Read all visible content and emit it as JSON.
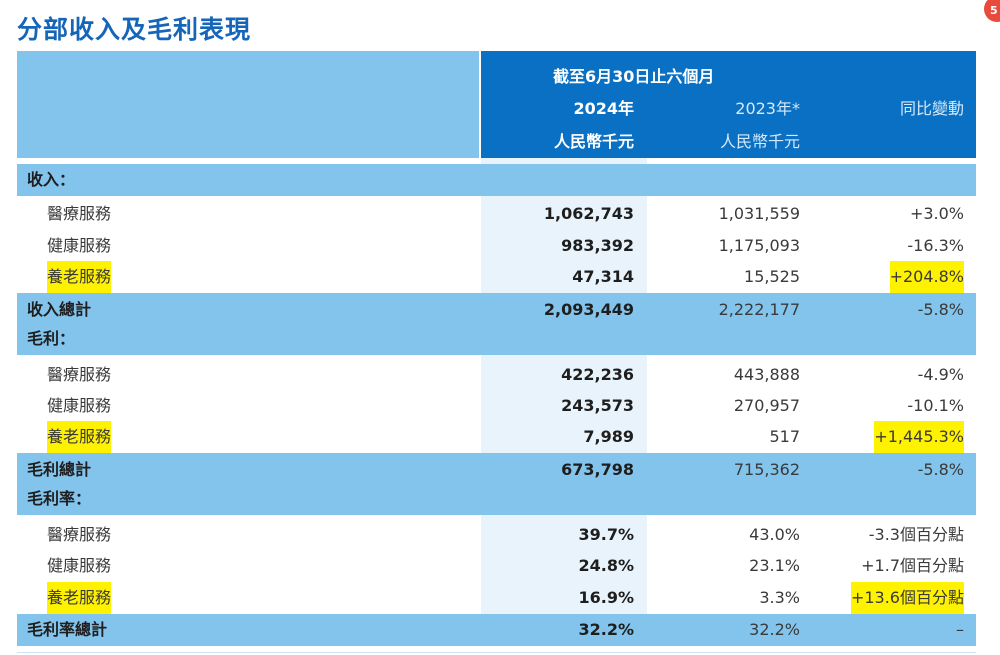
{
  "title": "分部收入及毛利表現",
  "badge": "5",
  "header": {
    "period": "截至6月30日止六個月",
    "col_2024": "2024年",
    "col_2023": "2023年*",
    "col_change": "同比變動",
    "unit_2024": "人民幣千元",
    "unit_2023": "人民幣千元"
  },
  "sections": {
    "revenue": "收入：",
    "gross_profit": "毛利：",
    "margin": "毛利率："
  },
  "revenue_rows": [
    {
      "label": "醫療服務",
      "v2024": "1,062,743",
      "v2023": "1,031,559",
      "change": "+3.0%"
    },
    {
      "label": "健康服務",
      "v2024": "983,392",
      "v2023": "1,175,093",
      "change": "-16.3%"
    },
    {
      "label": "養老服務",
      "v2024": "47,314",
      "v2023": "15,525",
      "change": "+204.8%"
    }
  ],
  "revenue_total": {
    "label": "收入總計",
    "v2024": "2,093,449",
    "v2023": "2,222,177",
    "change": "-5.8%"
  },
  "gp_rows": [
    {
      "label": "醫療服務",
      "v2024": "422,236",
      "v2023": "443,888",
      "change": "-4.9%"
    },
    {
      "label": "健康服務",
      "v2024": "243,573",
      "v2023": "270,957",
      "change": "-10.1%"
    },
    {
      "label": "養老服務",
      "v2024": "7,989",
      "v2023": "517",
      "change": "+1,445.3%"
    }
  ],
  "gp_total": {
    "label": "毛利總計",
    "v2024": "673,798",
    "v2023": "715,362",
    "change": "-5.8%"
  },
  "margin_rows": [
    {
      "label": "醫療服務",
      "v2024": "39.7%",
      "v2023": "43.0%",
      "change": "-3.3個百分點"
    },
    {
      "label": "健康服務",
      "v2024": "24.8%",
      "v2023": "23.1%",
      "change": "+1.7個百分點"
    },
    {
      "label": "養老服務",
      "v2024": "16.9%",
      "v2023": "3.3%",
      "change": "+13.6個百分點"
    }
  ],
  "margin_total": {
    "label": "毛利率總計",
    "v2024": "32.2%",
    "v2023": "32.2%",
    "change": "–"
  },
  "colors": {
    "title": "#1565b8",
    "header_dark": "#0a70c4",
    "header_light": "#83c4ec",
    "highlight": "#fff200"
  }
}
